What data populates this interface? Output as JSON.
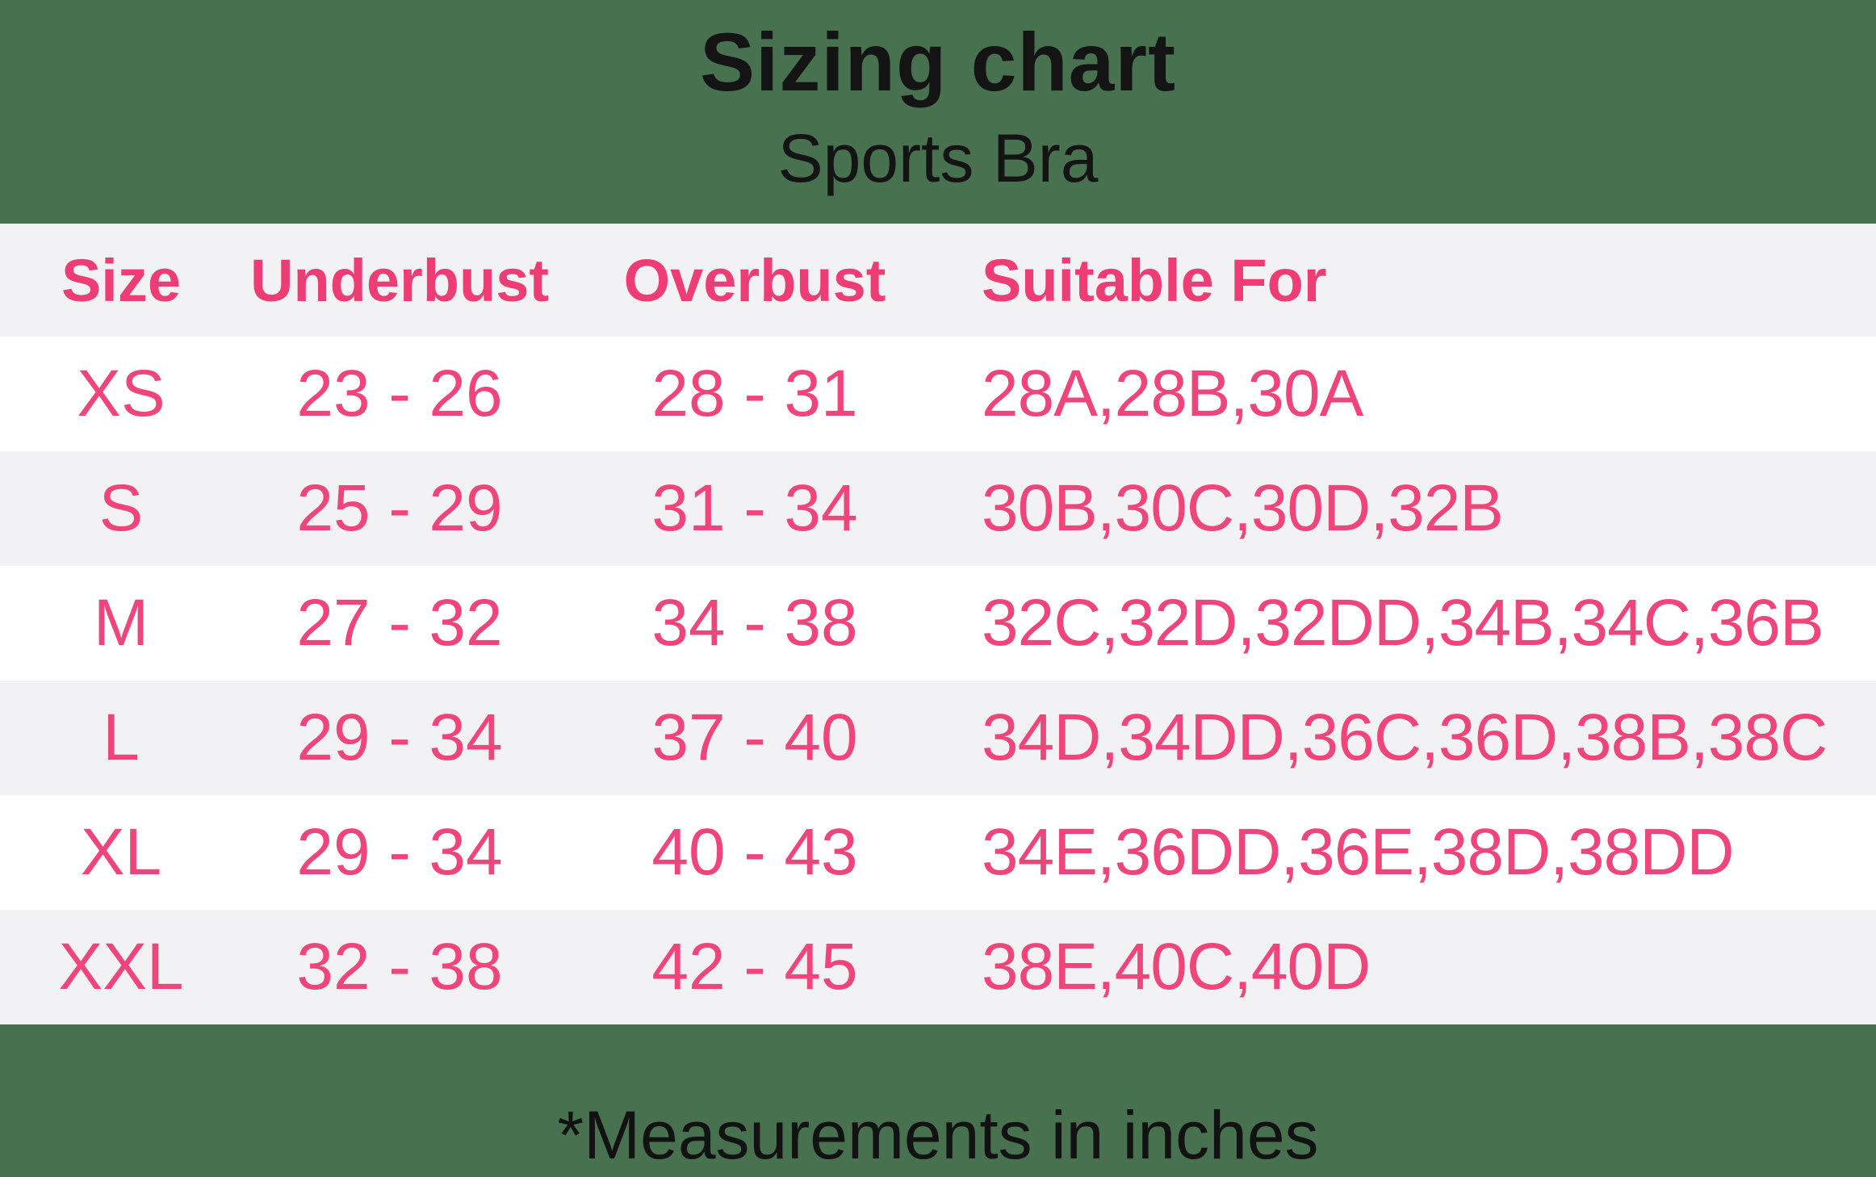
{
  "title": "Sizing chart",
  "subtitle": "Sports Bra",
  "footnote": "*Measurements in inches",
  "colors": {
    "background_green": "#47714F",
    "accent_pink": "#F0457B",
    "header_pink": "#EE3D74",
    "row_gray": "#F2F2F4",
    "row_white": "#FFFFFF",
    "text_black": "#141414"
  },
  "chart_data": {
    "type": "table",
    "title": "Sizing chart",
    "subtitle": "Sports Bra",
    "units": "inches",
    "columns": [
      "Size",
      "Underbust",
      "Overbust",
      "Suitable For"
    ],
    "rows": [
      [
        "XS",
        "23 - 26",
        "28 - 31",
        "28A,28B,30A"
      ],
      [
        "S",
        "25 - 29",
        "31 - 34",
        "30B,30C,30D,32B"
      ],
      [
        "M",
        "27 - 32",
        "34 - 38",
        "32C,32D,32DD,34B,34C,36B"
      ],
      [
        "L",
        "29 - 34",
        "37 - 40",
        "34D,34DD,36C,36D,38B,38C"
      ],
      [
        "XL",
        "29 - 34",
        "40 - 43",
        "34E,36DD,36E,38D,38DD"
      ],
      [
        "XXL",
        "32 - 38",
        "42 - 45",
        "38E,40C,40D"
      ]
    ]
  }
}
